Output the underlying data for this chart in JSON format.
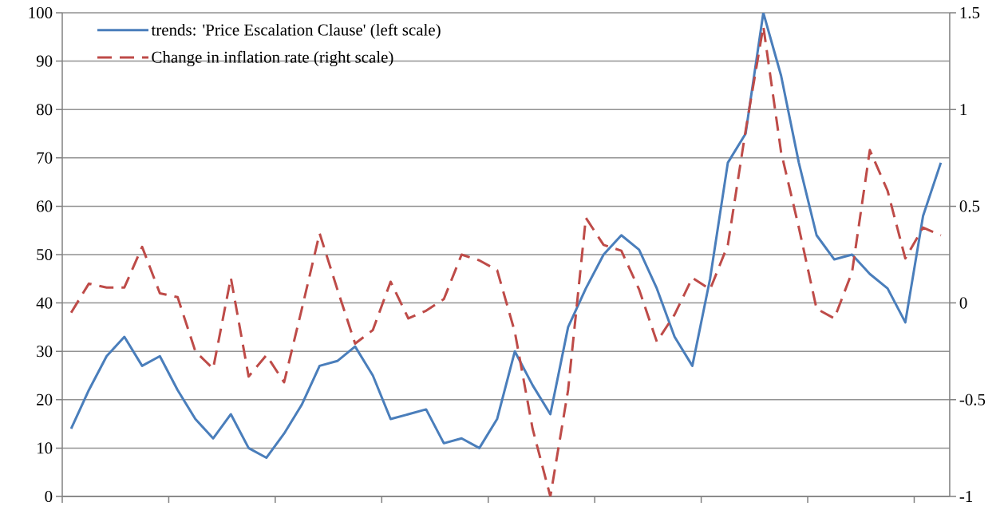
{
  "chart_data": {
    "type": "line",
    "categories": [
      null,
      null,
      null,
      null,
      null,
      null,
      null,
      null,
      null,
      null,
      null,
      null,
      null,
      null,
      null,
      null,
      null,
      null,
      null,
      null,
      null,
      null,
      null,
      null,
      null,
      null,
      null,
      null,
      null,
      null,
      null,
      null,
      null,
      null,
      null,
      null,
      null,
      null,
      null,
      null,
      null,
      null,
      null,
      null,
      null,
      null,
      null,
      null,
      null,
      null
    ],
    "series": [
      {
        "name": "trends: 'Price Escalation Clause' (left scale)",
        "color": "#4a7ebb",
        "line_style": "solid",
        "values": [
          14,
          22,
          29,
          33,
          27,
          29,
          22,
          16,
          12,
          17,
          10,
          8,
          13,
          19,
          27,
          28,
          31,
          25,
          16,
          17,
          18,
          11,
          12,
          10,
          16,
          30,
          23,
          17,
          35,
          43,
          50,
          54,
          51,
          43,
          33,
          27,
          45,
          69,
          75,
          100,
          87,
          69,
          54,
          49,
          50,
          46,
          43,
          36,
          58,
          69
        ]
      },
      {
        "name": "Change in inflation rate (right scale)",
        "color": "#be4b48",
        "line_style": "dashed",
        "axis": "y2",
        "values": [
          -0.05,
          0.1,
          0.08,
          0.08,
          0.29,
          0.05,
          0.03,
          -0.25,
          -0.34,
          0.13,
          -0.38,
          -0.27,
          -0.41,
          -0.03,
          0.36,
          0.07,
          -0.21,
          -0.14,
          0.11,
          -0.08,
          -0.04,
          0.02,
          0.25,
          0.22,
          0.17,
          -0.15,
          -0.65,
          -1,
          -0.45,
          0.44,
          0.3,
          0.27,
          0.07,
          -0.2,
          -0.06,
          0.13,
          0.07,
          0.3,
          0.89,
          1.43,
          0.78,
          0.39,
          -0.03,
          -0.08,
          0.16,
          0.79,
          0.58,
          0.23,
          0.39,
          0.35
        ]
      }
    ],
    "ylim": [
      0,
      100
    ],
    "yticks": [
      0,
      10,
      20,
      30,
      40,
      50,
      60,
      70,
      80,
      90,
      100
    ],
    "y2lim": [
      -1,
      1.5
    ],
    "y2ticks": [
      -1,
      -0.5,
      0,
      0.5,
      1,
      1.5
    ],
    "grid": "y",
    "legend": "top left"
  }
}
